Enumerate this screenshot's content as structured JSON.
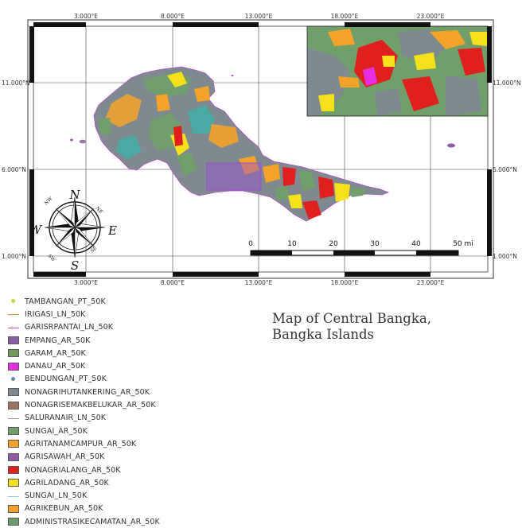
{
  "map": {
    "top_coords": [
      "3.000°E",
      "8.000°E",
      "13.000°E",
      "18.000°E",
      "23.000°E"
    ],
    "bottom_coords": [
      "3.000°E",
      "8.000°E",
      "13.000°E",
      "18.000°E",
      "23.000°E"
    ],
    "left_coords": [
      "11.000°N",
      "6.000°N",
      "1.000°N"
    ],
    "right_coords": [
      "11.000°N",
      "6.000°N",
      "1.000°N"
    ],
    "scale_labels": [
      "0",
      "10",
      "20",
      "30",
      "40",
      "50 mi"
    ],
    "compass": {
      "n": "N",
      "s": "S",
      "e": "E",
      "w": "W",
      "ne": "NE",
      "nw": "NW",
      "se": "SE",
      "sw": "SW"
    }
  },
  "title": {
    "line1": "Map of Central Bangka,",
    "line2": "Bangka Islands"
  },
  "legend": [
    {
      "label": "TAMBANGAN_PT_50K",
      "kind": "pt",
      "color": "#c7d94a"
    },
    {
      "label": "IRIGASI_LN_50K",
      "kind": "line",
      "color": "#d4924a"
    },
    {
      "label": "GARISRPANTAI_LN_50K",
      "kind": "line",
      "color": "#b34fc8"
    },
    {
      "label": "EMPANG_AR_50K",
      "kind": "poly",
      "color": "#8c5aa0"
    },
    {
      "label": "GARAM_AR_50K",
      "kind": "poly",
      "color": "#6f9a5e"
    },
    {
      "label": "DANAU_AR_50K",
      "kind": "poly",
      "color": "#e62de0"
    },
    {
      "label": "BENDUNGAN_PT_50K",
      "kind": "pt",
      "color": "#6a8aa6"
    },
    {
      "label": "NONAGRIHUTANKERING_AR_50K",
      "kind": "poly",
      "color": "#7f8a90"
    },
    {
      "label": "NONAGRISEMAKBELUKAR_AR_50K",
      "kind": "poly",
      "color": "#a07060"
    },
    {
      "label": "SALURANAIR_LN_50K",
      "kind": "line",
      "color": "#9a9a9a"
    },
    {
      "label": "SUNGAI_AR_50K",
      "kind": "poly",
      "color": "#6fa06a"
    },
    {
      "label": "AGRITANAMCAMPUR_AR_50K",
      "kind": "poly",
      "color": "#f4a22a"
    },
    {
      "label": "AGRISAWAH_AR_50K",
      "kind": "poly",
      "color": "#8e5aa8"
    },
    {
      "label": "NONAGRIALANG_AR_50K",
      "kind": "poly",
      "color": "#e0201f"
    },
    {
      "label": "AGRILADANG_AR_50K",
      "kind": "poly",
      "color": "#f5e11a"
    },
    {
      "label": "SUNGAI_LN_50K",
      "kind": "line",
      "color": "#8fd0e8"
    },
    {
      "label": "AGRIKEBUN_AR_50K",
      "kind": "poly",
      "color": "#f4a22a"
    },
    {
      "label": "ADMINISTRASIKECAMATAN_AR_50K",
      "kind": "poly",
      "color": "#6f9a6a"
    }
  ]
}
